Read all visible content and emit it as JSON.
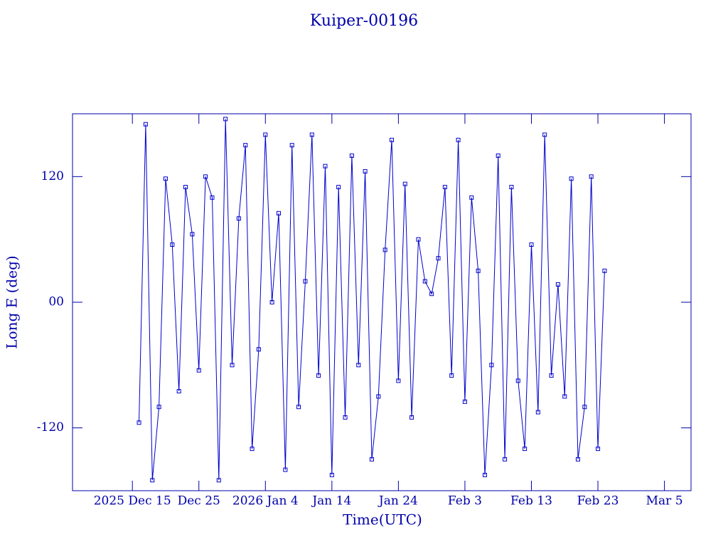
{
  "chart_data": {
    "type": "line",
    "title": "Kuiper-00196",
    "x_label": "Time(UTC)",
    "y_label": "Long E (deg)",
    "color": "#0000cc",
    "xlim": [
      "2025-12-06",
      "2026-03-09"
    ],
    "xticks": [
      {
        "value": "2025-12-15",
        "label": "2025 Dec 15"
      },
      {
        "value": "2025-12-25",
        "label": "Dec 25"
      },
      {
        "value": "2026-01-04",
        "label": "2026 Jan 4"
      },
      {
        "value": "2026-01-14",
        "label": "Jan 14"
      },
      {
        "value": "2026-01-24",
        "label": "Jan 24"
      },
      {
        "value": "2026-02-03",
        "label": "Feb 3"
      },
      {
        "value": "2026-02-13",
        "label": "Feb 13"
      },
      {
        "value": "2026-02-23",
        "label": "Feb 23"
      },
      {
        "value": "2026-03-05",
        "label": "Mar 5"
      }
    ],
    "ylim": [
      -180,
      180
    ],
    "yticks": [
      -120,
      {
        "value": 0,
        "label": "00"
      },
      120
    ],
    "x": [
      "2025-12-16",
      "2025-12-17",
      "2025-12-18",
      "2025-12-19",
      "2025-12-20",
      "2025-12-21",
      "2025-12-22",
      "2025-12-23",
      "2025-12-24",
      "2025-12-25",
      "2025-12-26",
      "2025-12-27",
      "2025-12-28",
      "2025-12-29",
      "2025-12-30",
      "2025-12-31",
      "2026-01-01",
      "2026-01-02",
      "2026-01-03",
      "2026-01-04",
      "2026-01-05",
      "2026-01-06",
      "2026-01-07",
      "2026-01-08",
      "2026-01-09",
      "2026-01-10",
      "2026-01-11",
      "2026-01-12",
      "2026-01-13",
      "2026-01-14",
      "2026-01-15",
      "2026-01-16",
      "2026-01-17",
      "2026-01-18",
      "2026-01-19",
      "2026-01-20",
      "2026-01-21",
      "2026-01-22",
      "2026-01-23",
      "2026-01-24",
      "2026-01-25",
      "2026-01-26",
      "2026-01-27",
      "2026-01-28",
      "2026-01-29",
      "2026-01-30",
      "2026-01-31",
      "2026-02-01",
      "2026-02-02",
      "2026-02-03",
      "2026-02-04",
      "2026-02-05",
      "2026-02-06",
      "2026-02-07",
      "2026-02-08",
      "2026-02-09",
      "2026-02-10",
      "2026-02-11",
      "2026-02-12",
      "2026-02-13",
      "2026-02-14",
      "2026-02-15",
      "2026-02-16",
      "2026-02-17",
      "2026-02-18",
      "2026-02-19",
      "2026-02-20",
      "2026-02-21",
      "2026-02-22",
      "2026-02-23",
      "2026-02-24"
    ],
    "values": [
      -115,
      170,
      -170,
      -100,
      118,
      55,
      -85,
      110,
      65,
      -65,
      120,
      100,
      -170,
      175,
      -60,
      80,
      150,
      -140,
      -45,
      160,
      0,
      85,
      -160,
      150,
      -100,
      20,
      160,
      -70,
      130,
      -165,
      110,
      -110,
      140,
      -60,
      125,
      -150,
      -90,
      50,
      155,
      -75,
      113,
      -110,
      60,
      20,
      8,
      42,
      110,
      -70,
      155,
      -95,
      100,
      30,
      -165,
      -60,
      140,
      -150,
      110,
      -75,
      -140,
      55,
      -105,
      160,
      -70,
      17,
      -90,
      118,
      -150,
      -100,
      120,
      -140,
      30
    ]
  }
}
